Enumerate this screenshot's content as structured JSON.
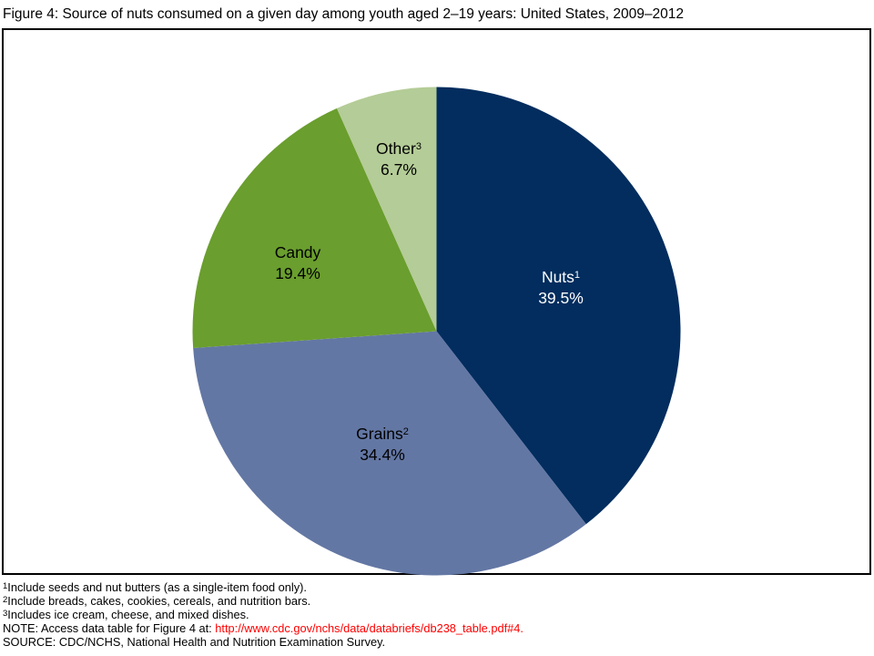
{
  "chart_data": {
    "type": "pie",
    "title": "Figure 4: Source of nuts consumed on a given day among youth aged 2–19 years: United States, 2009–2012",
    "start_angle_deg": 0,
    "direction": "clockwise",
    "labels_inside": true,
    "slices": [
      {
        "label": "Nuts",
        "superscript": "1",
        "value": 39.5,
        "percent_label": "39.5%",
        "color": "#022d5e",
        "text_color": "#ffffff"
      },
      {
        "label": "Grains",
        "superscript": "2",
        "value": 34.4,
        "percent_label": "34.4%",
        "color": "#6377a4",
        "text_color": "#000000"
      },
      {
        "label": "Candy",
        "superscript": "",
        "value": 19.4,
        "percent_label": "19.4%",
        "color": "#6a9e2e",
        "text_color": "#000000"
      },
      {
        "label": "Other",
        "superscript": "3",
        "value": 6.7,
        "percent_label": "6.7%",
        "color": "#b4cc97",
        "text_color": "#000000"
      }
    ]
  },
  "footnotes": [
    {
      "superscript": "1",
      "text": "Include seeds and nut butters (as a single-item food only)."
    },
    {
      "superscript": "2",
      "text": "Include breads, cakes, cookies, cereals, and nutrition bars."
    },
    {
      "superscript": "3",
      "text": "Includes ice cream, cheese, and mixed dishes."
    }
  ],
  "note": {
    "prefix": "NOTE: Access data table for Figure 4 at: ",
    "link": "http://www.cdc.gov/nchs/data/databriefs/db238_table.pdf#4",
    "suffix": ".",
    "link_color": "#ff0000"
  },
  "source": "SOURCE: CDC/NCHS, National Health and Nutrition Examination Survey."
}
